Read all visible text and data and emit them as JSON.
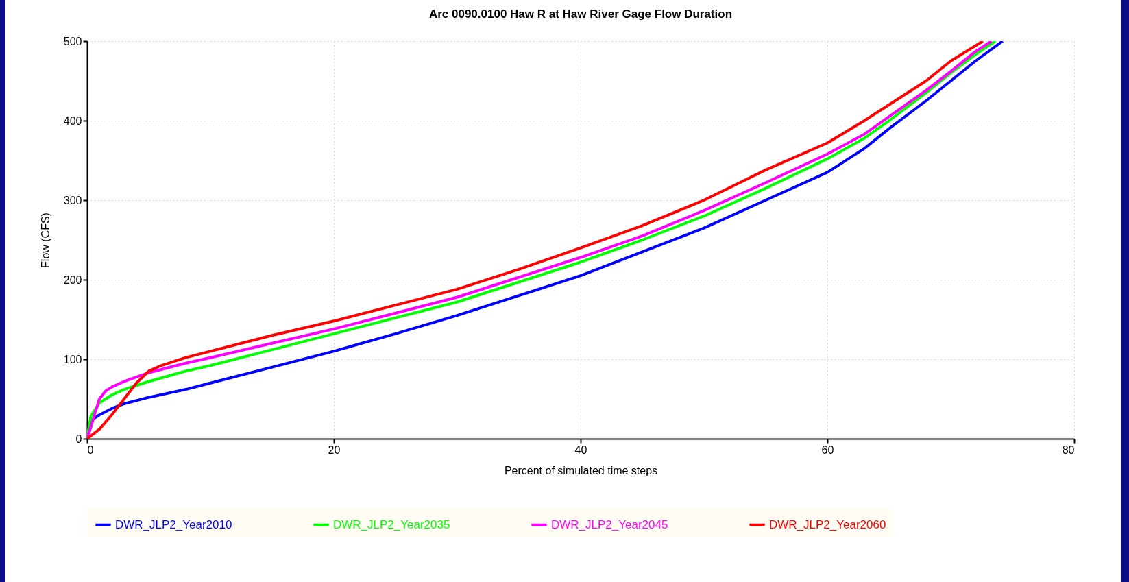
{
  "chart_data": {
    "type": "line",
    "title": "Arc 0090.0100 Haw R at Haw River Gage Flow Duration",
    "xlabel": "Percent of simulated time steps",
    "ylabel": "Flow (CFS)",
    "xlim": [
      0,
      80
    ],
    "xticks": [
      0,
      20,
      40,
      60,
      80
    ],
    "ylim": [
      0,
      500
    ],
    "yticks": [
      0,
      100,
      200,
      300,
      400,
      500
    ],
    "grid": true,
    "legend": "bottom",
    "marker": "none",
    "line_style": "solid",
    "series": [
      {
        "name": "DWR_JLP2_Year2010",
        "color": "#0000ff",
        "x": [
          0,
          0.5,
          1,
          2,
          3,
          5,
          8,
          10,
          15,
          20,
          25,
          30,
          35,
          40,
          45,
          50,
          55,
          60,
          63,
          65,
          68,
          70,
          72,
          74.2
        ],
        "values": [
          0,
          25,
          30,
          38,
          44,
          52,
          62,
          70,
          90,
          110,
          132,
          155,
          180,
          205,
          235,
          265,
          300,
          335,
          365,
          390,
          425,
          450,
          475,
          500
        ]
      },
      {
        "name": "DWR_JLP2_Year2035",
        "color": "#00ff00",
        "x": [
          0,
          0.3,
          1,
          2,
          3,
          5,
          8,
          10,
          15,
          20,
          25,
          30,
          35,
          40,
          45,
          50,
          55,
          60,
          63,
          65,
          68,
          70,
          72,
          73.6
        ],
        "values": [
          0,
          28,
          45,
          55,
          62,
          72,
          85,
          92,
          112,
          132,
          152,
          172,
          197,
          222,
          250,
          280,
          315,
          352,
          378,
          400,
          435,
          460,
          483,
          500
        ]
      },
      {
        "name": "DWR_JLP2_Year2045",
        "color": "#ff00ff",
        "x": [
          0,
          0.5,
          1,
          1.5,
          2,
          3,
          5,
          8,
          10,
          15,
          20,
          25,
          30,
          35,
          40,
          45,
          50,
          55,
          60,
          63,
          65,
          68,
          70,
          72,
          73.3
        ],
        "values": [
          0,
          25,
          50,
          60,
          65,
          72,
          83,
          95,
          102,
          120,
          138,
          158,
          178,
          203,
          228,
          255,
          287,
          322,
          358,
          383,
          405,
          438,
          462,
          487,
          500
        ]
      },
      {
        "name": "DWR_JLP2_Year2060",
        "color": "#ff0000",
        "x": [
          0,
          1,
          2,
          3,
          4,
          5,
          6,
          8,
          10,
          15,
          20,
          25,
          30,
          35,
          40,
          45,
          50,
          55,
          60,
          63,
          65,
          68,
          70,
          72.6
        ],
        "values": [
          0,
          12,
          30,
          50,
          70,
          85,
          92,
          102,
          110,
          130,
          148,
          168,
          188,
          213,
          240,
          268,
          300,
          338,
          372,
          400,
          420,
          450,
          475,
          500
        ]
      }
    ]
  }
}
